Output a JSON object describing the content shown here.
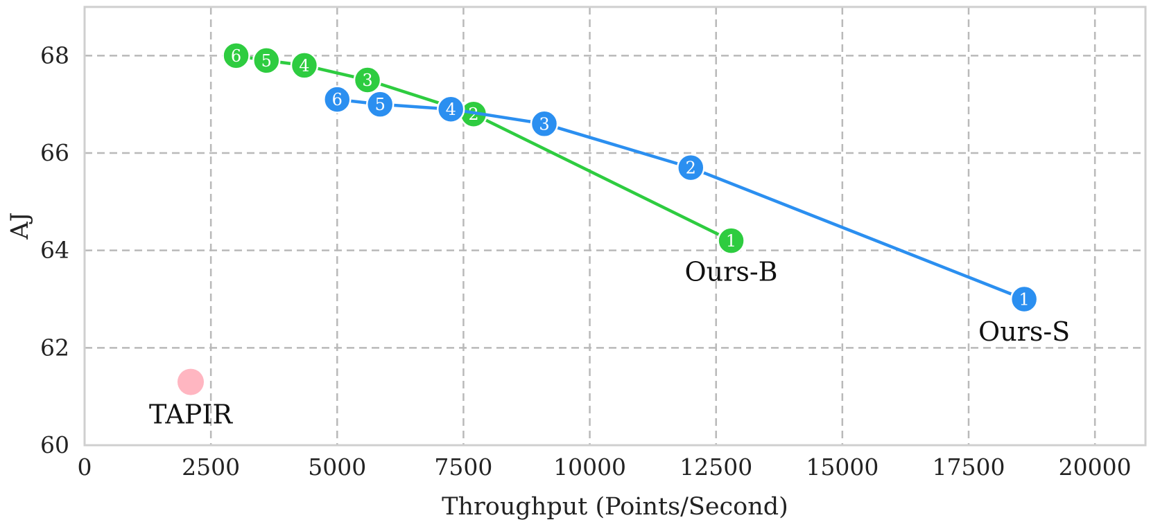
{
  "chart_data": {
    "type": "scatter",
    "xlabel": "Throughput (Points/Second)",
    "ylabel": "AJ",
    "xlim": [
      0,
      21000
    ],
    "ylim": [
      60,
      69
    ],
    "xticks": [
      0,
      2500,
      5000,
      7500,
      10000,
      12500,
      15000,
      17500,
      20000
    ],
    "yticks": [
      60,
      62,
      64,
      66,
      68
    ],
    "grid": true,
    "series": [
      {
        "name": "Ours-B",
        "color": "#2ecc40",
        "connected": true,
        "points": [
          {
            "x": 12800,
            "y": 64.2,
            "label": "1"
          },
          {
            "x": 7700,
            "y": 66.8,
            "label": "2"
          },
          {
            "x": 5600,
            "y": 67.5,
            "label": "3"
          },
          {
            "x": 4350,
            "y": 67.8,
            "label": "4"
          },
          {
            "x": 3600,
            "y": 67.9,
            "label": "5"
          },
          {
            "x": 3000,
            "y": 68.0,
            "label": "6"
          }
        ]
      },
      {
        "name": "Ours-S",
        "color": "#2b8ff0",
        "connected": true,
        "points": [
          {
            "x": 18600,
            "y": 63.0,
            "label": "1"
          },
          {
            "x": 12000,
            "y": 65.7,
            "label": "2"
          },
          {
            "x": 9100,
            "y": 66.6,
            "label": "3"
          },
          {
            "x": 7250,
            "y": 66.9,
            "label": "4"
          },
          {
            "x": 5850,
            "y": 67.0,
            "label": "5"
          },
          {
            "x": 5000,
            "y": 67.1,
            "label": "6"
          }
        ]
      },
      {
        "name": "TAPIR",
        "color": "#ffb6c1",
        "connected": false,
        "points": [
          {
            "x": 2100,
            "y": 61.3,
            "label": ""
          }
        ]
      }
    ]
  }
}
